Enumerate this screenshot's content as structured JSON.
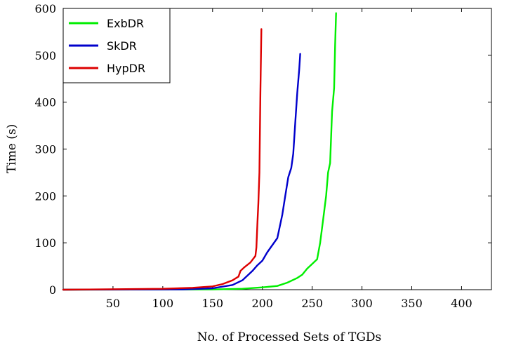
{
  "chart_data": {
    "type": "line",
    "xlabel": "No. of Processed Sets of TGDs",
    "ylabel": "Time (s)",
    "xlim": [
      0,
      430
    ],
    "ylim": [
      0,
      600
    ],
    "xticks": [
      50,
      100,
      150,
      200,
      250,
      300,
      350,
      400
    ],
    "yticks": [
      0,
      100,
      200,
      300,
      400,
      500,
      600
    ],
    "grid": false,
    "legend_position": "top-left",
    "series": [
      {
        "name": "ExbDR",
        "color": "#00ee00",
        "points": [
          [
            0,
            0
          ],
          [
            150,
            0.5
          ],
          [
            180,
            2
          ],
          [
            200,
            5
          ],
          [
            215,
            8
          ],
          [
            225,
            15
          ],
          [
            235,
            25
          ],
          [
            240,
            32
          ],
          [
            245,
            45
          ],
          [
            250,
            55
          ],
          [
            255,
            65
          ],
          [
            258,
            100
          ],
          [
            261,
            150
          ],
          [
            264,
            200
          ],
          [
            266,
            250
          ],
          [
            268,
            270
          ],
          [
            270,
            380
          ],
          [
            272,
            430
          ],
          [
            273,
            520
          ],
          [
            274,
            590
          ]
        ]
      },
      {
        "name": "SkDR",
        "color": "#0000cc",
        "points": [
          [
            0,
            0
          ],
          [
            120,
            0.5
          ],
          [
            150,
            3
          ],
          [
            170,
            10
          ],
          [
            180,
            20
          ],
          [
            190,
            40
          ],
          [
            195,
            52
          ],
          [
            200,
            62
          ],
          [
            205,
            80
          ],
          [
            210,
            95
          ],
          [
            215,
            110
          ],
          [
            220,
            160
          ],
          [
            223,
            200
          ],
          [
            226,
            240
          ],
          [
            229,
            260
          ],
          [
            231,
            290
          ],
          [
            233,
            355
          ],
          [
            235,
            420
          ],
          [
            237,
            470
          ],
          [
            238,
            503
          ]
        ]
      },
      {
        "name": "HypDR",
        "color": "#dd0000",
        "points": [
          [
            0,
            0
          ],
          [
            100,
            2
          ],
          [
            130,
            4
          ],
          [
            150,
            7
          ],
          [
            160,
            12
          ],
          [
            170,
            20
          ],
          [
            176,
            28
          ],
          [
            178,
            40
          ],
          [
            182,
            48
          ],
          [
            188,
            58
          ],
          [
            193,
            72
          ],
          [
            194,
            90
          ],
          [
            195,
            140
          ],
          [
            196,
            185
          ],
          [
            197,
            250
          ],
          [
            198,
            420
          ],
          [
            199,
            556
          ]
        ]
      }
    ]
  }
}
